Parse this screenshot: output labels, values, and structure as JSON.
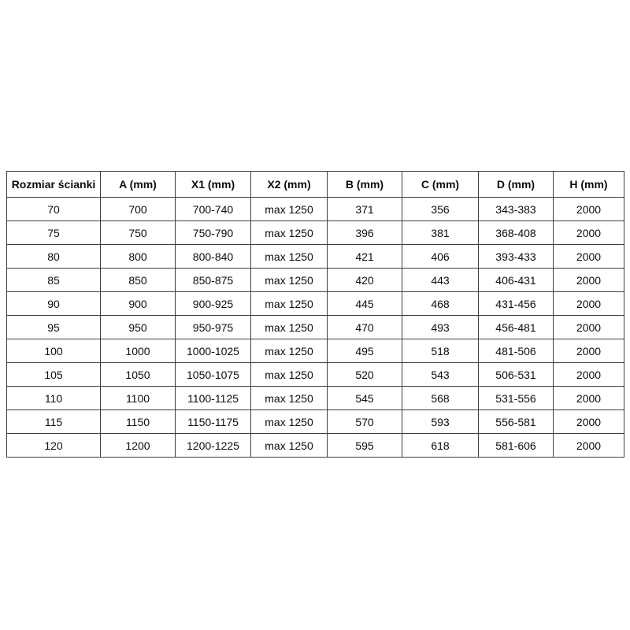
{
  "page": {
    "background_color": "#ffffff",
    "text_color": "#0d0d0d",
    "border_color": "#3f3f3f"
  },
  "table": {
    "headers": [
      "Rozmiar ścianki",
      "A (mm)",
      "X1 (mm)",
      "X2 (mm)",
      "B (mm)",
      "C (mm)",
      "D (mm)",
      "H (mm)"
    ],
    "rows": [
      [
        "70",
        "700",
        "700-740",
        "max 1250",
        "371",
        "356",
        "343-383",
        "2000"
      ],
      [
        "75",
        "750",
        "750-790",
        "max 1250",
        "396",
        "381",
        "368-408",
        "2000"
      ],
      [
        "80",
        "800",
        "800-840",
        "max 1250",
        "421",
        "406",
        "393-433",
        "2000"
      ],
      [
        "85",
        "850",
        "850-875",
        "max 1250",
        "420",
        "443",
        "406-431",
        "2000"
      ],
      [
        "90",
        "900",
        "900-925",
        "max 1250",
        "445",
        "468",
        "431-456",
        "2000"
      ],
      [
        "95",
        "950",
        "950-975",
        "max 1250",
        "470",
        "493",
        "456-481",
        "2000"
      ],
      [
        "100",
        "1000",
        "1000-1025",
        "max 1250",
        "495",
        "518",
        "481-506",
        "2000"
      ],
      [
        "105",
        "1050",
        "1050-1075",
        "max 1250",
        "520",
        "543",
        "506-531",
        "2000"
      ],
      [
        "110",
        "1100",
        "1100-1125",
        "max 1250",
        "545",
        "568",
        "531-556",
        "2000"
      ],
      [
        "115",
        "1150",
        "1150-1175",
        "max 1250",
        "570",
        "593",
        "556-581",
        "2000"
      ],
      [
        "120",
        "1200",
        "1200-1225",
        "max 1250",
        "595",
        "618",
        "581-606",
        "2000"
      ]
    ]
  }
}
